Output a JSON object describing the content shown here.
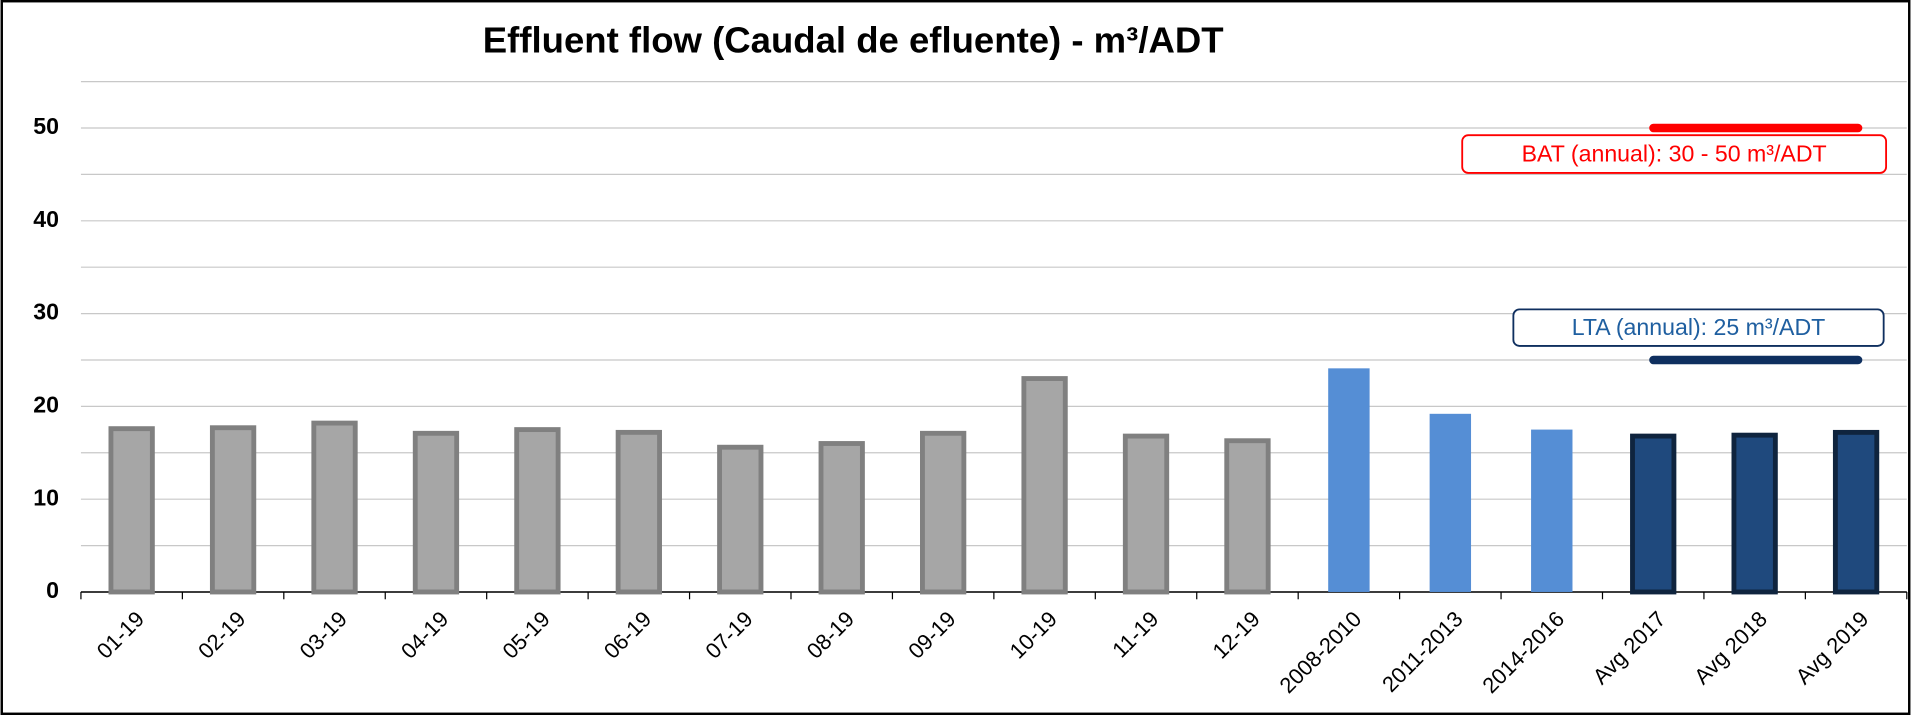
{
  "chart_data": {
    "type": "bar",
    "title": "Effluent flow (Caudal de efluente) - m³/ADT",
    "categories": [
      "01-19",
      "02-19",
      "03-19",
      "04-19",
      "05-19",
      "06-19",
      "07-19",
      "08-19",
      "09-19",
      "10-19",
      "11-19",
      "12-19",
      "2008-2010",
      "2011-2013",
      "2014-2016",
      "Avg 2017",
      "Avg 2018",
      "Avg 2019"
    ],
    "values": [
      17.6,
      17.7,
      18.2,
      17.1,
      17.5,
      17.2,
      15.6,
      16.0,
      17.1,
      23.0,
      16.8,
      16.3,
      24.1,
      19.2,
      17.5,
      16.8,
      16.9,
      17.2
    ],
    "colors": [
      "#a6a6a6",
      "#a6a6a6",
      "#a6a6a6",
      "#a6a6a6",
      "#a6a6a6",
      "#a6a6a6",
      "#a6a6a6",
      "#a6a6a6",
      "#a6a6a6",
      "#a6a6a6",
      "#a6a6a6",
      "#a6a6a6",
      "#558ed5",
      "#558ed5",
      "#558ed5",
      "#1f497d",
      "#1f497d",
      "#1f497d"
    ],
    "ylim": [
      0,
      55
    ],
    "yticks": [
      0,
      10,
      20,
      30,
      40,
      50
    ],
    "minor_yticks": [
      5,
      15,
      25,
      35,
      45,
      55
    ],
    "grid": true,
    "reference_lines": [
      {
        "value": 50,
        "color": "#ff0000",
        "label": "BAT (annual): 30 - 50 m³/ADT"
      },
      {
        "value": 25,
        "color": "#0f2f5f",
        "label": "LTA (annual): 25 m³/ADT"
      }
    ]
  }
}
